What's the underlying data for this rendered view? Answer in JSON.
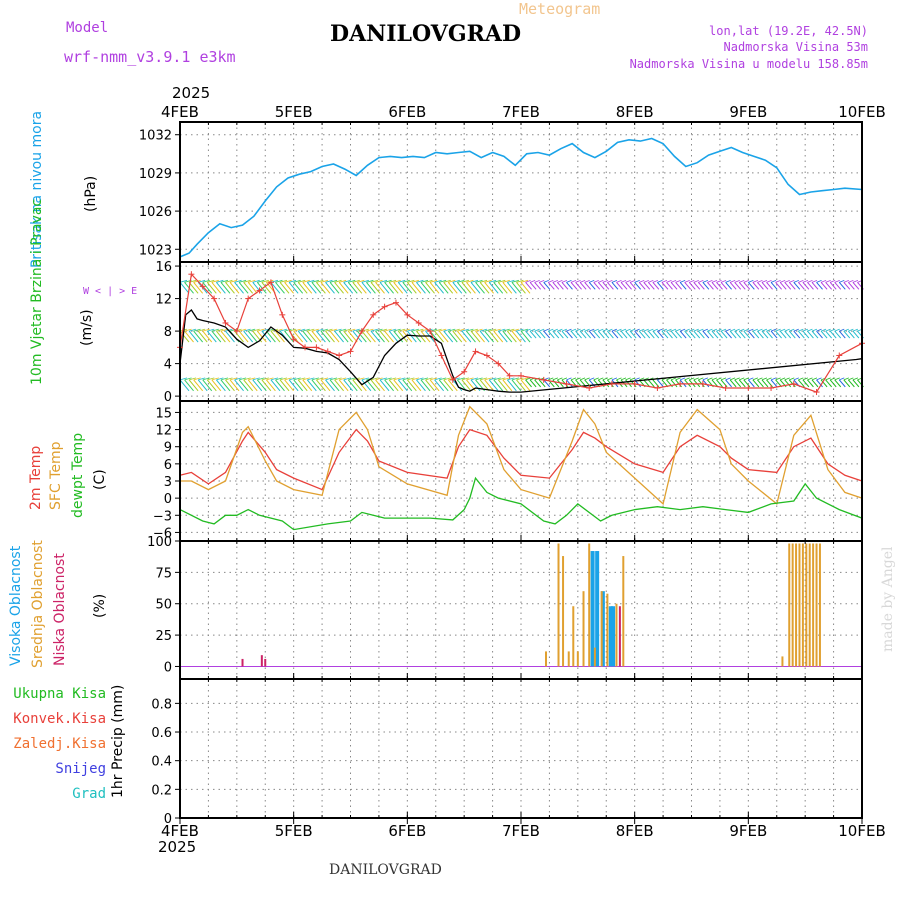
{
  "header": {
    "title": "DANILOVGRAD",
    "subtitle": "Meteogram",
    "model_label": "Model",
    "model_name": "wrf-nmm_v3.9.1  e3km",
    "coords": "lon,lat (19.2E, 42.5N)",
    "elevation": "Nadmorska Visina 53m",
    "model_elevation": "Nadmorska Visina u modelu 158.85m",
    "year_top": "2025",
    "year_bottom": "2025",
    "footer_title": "DANILOVGRAD",
    "credit": "made by Angel"
  },
  "colors": {
    "pressure": "#1aa3e8",
    "temp2m": "#e8403a",
    "sfc": "#e0a030",
    "dew": "#22bb22",
    "wind_line": "#000000",
    "gust": "#e8403a",
    "purple": "#b040e0",
    "grid": "#888888"
  },
  "chart_data": [
    {
      "type": "line",
      "title": "Pritisak na nivou mora",
      "ylabel": "(hPa)",
      "y_ticks": [
        1023,
        1026,
        1029,
        1032
      ],
      "ylim": [
        1022,
        1033
      ],
      "x_ticks": [
        "4FEB",
        "5FEB",
        "6FEB",
        "7FEB",
        "8FEB",
        "9FEB",
        "10FEB"
      ],
      "xlim": [
        0,
        6
      ],
      "series": [
        {
          "name": "pressure",
          "x": [
            0,
            0.08,
            0.15,
            0.25,
            0.35,
            0.45,
            0.55,
            0.65,
            0.75,
            0.85,
            0.95,
            1.05,
            1.15,
            1.25,
            1.35,
            1.45,
            1.55,
            1.65,
            1.75,
            1.85,
            1.95,
            2.05,
            2.15,
            2.25,
            2.35,
            2.45,
            2.55,
            2.65,
            2.75,
            2.85,
            2.95,
            3.05,
            3.15,
            3.25,
            3.35,
            3.45,
            3.55,
            3.65,
            3.75,
            3.85,
            3.95,
            4.05,
            4.15,
            4.25,
            4.35,
            4.45,
            4.55,
            4.65,
            4.75,
            4.85,
            4.95,
            5.05,
            5.15,
            5.25,
            5.35,
            5.45,
            5.55,
            5.65,
            5.75,
            5.85,
            6.0
          ],
          "values": [
            1022.4,
            1022.7,
            1023.4,
            1024.3,
            1025.0,
            1024.7,
            1024.9,
            1025.6,
            1026.8,
            1027.9,
            1028.6,
            1028.9,
            1029.1,
            1029.5,
            1029.7,
            1029.3,
            1028.8,
            1029.6,
            1030.2,
            1030.3,
            1030.2,
            1030.3,
            1030.2,
            1030.6,
            1030.5,
            1030.6,
            1030.7,
            1030.2,
            1030.6,
            1030.3,
            1029.6,
            1030.5,
            1030.6,
            1030.4,
            1030.9,
            1031.3,
            1030.6,
            1030.2,
            1030.7,
            1031.4,
            1031.6,
            1031.5,
            1031.7,
            1031.3,
            1030.3,
            1029.5,
            1029.8,
            1030.4,
            1030.7,
            1031.0,
            1030.6,
            1030.3,
            1030.0,
            1029.4,
            1028.1,
            1027.3,
            1027.5,
            1027.6,
            1027.7,
            1027.8,
            1027.7
          ]
        }
      ]
    },
    {
      "type": "line",
      "title": "10m Vjetar Brzina i Pravac",
      "ylabel": "(m/s)",
      "direction_legend": "W < | > E",
      "y_ticks": [
        0,
        4,
        8,
        12,
        16
      ],
      "ylim": [
        -0.6,
        16.5
      ],
      "series": [
        {
          "name": "wind speed",
          "x": [
            0,
            0.05,
            0.1,
            0.15,
            0.2,
            0.3,
            0.4,
            0.5,
            0.6,
            0.7,
            0.8,
            0.9,
            1.0,
            1.1,
            1.2,
            1.3,
            1.4,
            1.5,
            1.6,
            1.7,
            1.8,
            1.9,
            2.0,
            2.1,
            2.2,
            2.3,
            2.4,
            2.45,
            2.5,
            2.55,
            2.6,
            2.7,
            2.8,
            2.9,
            3.0,
            5.95,
            6.0
          ],
          "values": [
            4,
            10,
            10.6,
            9.5,
            9.3,
            9.0,
            8.5,
            7.0,
            6.0,
            6.8,
            8.5,
            7.5,
            6.0,
            5.9,
            5.5,
            5.3,
            4.5,
            3.0,
            1.4,
            2.3,
            5.0,
            6.5,
            7.5,
            7.4,
            7.4,
            6.5,
            2.5,
            1.1,
            0.8,
            0.6,
            1.0,
            0.8,
            0.6,
            0.5,
            0.5,
            4.5,
            4.6
          ]
        },
        {
          "name": "gusts",
          "x": [
            0,
            0.1,
            0.2,
            0.3,
            0.4,
            0.5,
            0.6,
            0.7,
            0.8,
            0.9,
            1.0,
            1.1,
            1.2,
            1.3,
            1.4,
            1.5,
            1.6,
            1.7,
            1.8,
            1.9,
            2.0,
            2.1,
            2.2,
            2.3,
            2.4,
            2.5,
            2.6,
            2.7,
            2.8,
            2.9,
            3.0,
            3.2,
            3.4,
            3.6,
            3.8,
            4.0,
            4.2,
            4.4,
            4.6,
            4.8,
            5.0,
            5.2,
            5.4,
            5.6,
            5.8,
            6.0
          ],
          "values": [
            6,
            15,
            13.5,
            12,
            9,
            8,
            12,
            13,
            14,
            10,
            7,
            6,
            6,
            5.5,
            5,
            5.5,
            8,
            10,
            11,
            11.5,
            10,
            9,
            8,
            5,
            2,
            3,
            5.5,
            5,
            4,
            2.5,
            2.5,
            2,
            1.5,
            1,
            1.5,
            1.5,
            1,
            1.5,
            1.5,
            1,
            1,
            1,
            1.5,
            0.5,
            5,
            6.5
          ]
        }
      ],
      "barb_rows": [
        {
          "color": "#b040e0",
          "level": 14,
          "label": "upper level"
        },
        {
          "color": "#22bbcc",
          "level": 8,
          "label": "mid level"
        },
        {
          "color": "#22bb22",
          "level": 2,
          "label": "low level"
        }
      ]
    },
    {
      "type": "line",
      "title": "2m Temp / SFC Temp / dewpt Temp",
      "ylabel": "(C)",
      "labels": [
        "2m Temp",
        "SFC Temp",
        "dewpt Temp"
      ],
      "y_ticks": [
        -6,
        -3,
        0,
        3,
        6,
        9,
        12,
        15
      ],
      "ylim": [
        -7.5,
        17
      ],
      "series": [
        {
          "name": "2m Temp",
          "x": [
            0,
            0.1,
            0.25,
            0.4,
            0.55,
            0.6,
            0.75,
            0.85,
            1.0,
            1.25,
            1.4,
            1.55,
            1.65,
            1.75,
            2.0,
            2.35,
            2.45,
            2.55,
            2.7,
            2.85,
            3.0,
            3.25,
            3.45,
            3.55,
            3.65,
            3.75,
            4.0,
            4.25,
            4.4,
            4.55,
            4.75,
            4.85,
            5.0,
            5.25,
            5.4,
            5.55,
            5.7,
            5.85,
            6.0
          ],
          "values": [
            4,
            4.5,
            2.5,
            4.5,
            10,
            11.5,
            8,
            5,
            3.5,
            1.5,
            8,
            12,
            10,
            6.5,
            4.5,
            3.5,
            9,
            12,
            11,
            7,
            4,
            3.5,
            8.5,
            11.5,
            10.5,
            9,
            6,
            4.5,
            9,
            11,
            9,
            7,
            5,
            4.5,
            9,
            10.5,
            6,
            4,
            3
          ]
        },
        {
          "name": "SFC Temp",
          "x": [
            0,
            0.1,
            0.25,
            0.4,
            0.55,
            0.6,
            0.75,
            0.85,
            1.0,
            1.25,
            1.4,
            1.55,
            1.65,
            1.75,
            2.0,
            2.35,
            2.45,
            2.55,
            2.7,
            2.85,
            3.0,
            3.25,
            3.45,
            3.55,
            3.65,
            3.75,
            4.0,
            4.25,
            4.4,
            4.55,
            4.75,
            4.85,
            5.0,
            5.25,
            5.4,
            5.55,
            5.7,
            5.85,
            6.0
          ],
          "values": [
            3,
            3,
            1.5,
            3,
            11.5,
            12.5,
            6.5,
            3,
            1.5,
            0.5,
            12,
            15,
            12,
            5.5,
            2.5,
            0.5,
            11,
            16,
            13,
            5,
            1.5,
            0,
            10,
            15.5,
            13,
            8,
            3.5,
            -1,
            11.5,
            15.5,
            12,
            6,
            3,
            -1,
            11,
            14.5,
            5,
            1,
            0
          ]
        },
        {
          "name": "dewpt Temp",
          "x": [
            0,
            0.2,
            0.3,
            0.4,
            0.5,
            0.6,
            0.7,
            0.9,
            1.0,
            1.3,
            1.5,
            1.6,
            1.8,
            2.0,
            2.2,
            2.4,
            2.5,
            2.55,
            2.6,
            2.7,
            2.8,
            3.0,
            3.2,
            3.3,
            3.4,
            3.5,
            3.7,
            3.8,
            4.0,
            4.2,
            4.4,
            4.6,
            4.8,
            5.0,
            5.2,
            5.4,
            5.5,
            5.6,
            5.8,
            6.0
          ],
          "values": [
            -2,
            -4,
            -4.5,
            -3,
            -3,
            -2,
            -3,
            -4,
            -5.5,
            -4.5,
            -4,
            -2.5,
            -3.5,
            -3.5,
            -3.5,
            -3.8,
            -2,
            0,
            3.5,
            1,
            0,
            -1,
            -4,
            -4.5,
            -3,
            -1,
            -4,
            -3,
            -2,
            -1.5,
            -2,
            -1.5,
            -2,
            -2.5,
            -1,
            -0.5,
            2.5,
            0,
            -2,
            -3.5
          ]
        }
      ]
    },
    {
      "type": "bar",
      "title": "Visoka / Srednja / Niska Oblacnost",
      "ylabel": "(%)",
      "labels": [
        "Visoka Oblacnost",
        "Srednja Oblacnost",
        "Niska Oblacnost"
      ],
      "y_ticks": [
        0,
        25,
        50,
        75,
        100
      ],
      "ylim": [
        -10,
        100
      ],
      "series": [
        {
          "name": "Visoka",
          "color": "#1aa3e8",
          "x": [
            3.63,
            3.67,
            3.72,
            3.79,
            3.81
          ],
          "values": [
            92,
            92,
            60,
            48,
            48
          ]
        },
        {
          "name": "Srednja",
          "color": "#e0a030",
          "x": [
            3.22,
            3.33,
            3.37,
            3.42,
            3.46,
            3.5,
            3.55,
            3.6,
            3.65,
            3.71,
            3.76,
            3.84,
            3.9,
            5.3,
            5.36,
            5.39,
            5.42,
            5.45,
            5.48,
            5.51,
            5.54,
            5.57,
            5.6,
            5.63
          ],
          "values": [
            12,
            98,
            88,
            12,
            48,
            12,
            60,
            98,
            15,
            60,
            58,
            50,
            88,
            8,
            98,
            98,
            98,
            98,
            98,
            98,
            98,
            98,
            98,
            98
          ]
        },
        {
          "name": "Niska",
          "color": "#cc2266",
          "x": [
            0.55,
            0.72,
            0.75,
            3.87
          ],
          "values": [
            6,
            9,
            6,
            48
          ]
        }
      ]
    },
    {
      "type": "bar",
      "title": "1hr Precip",
      "ylabel": "1hr Precip (mm)",
      "labels": [
        "Ukupna Kisa",
        "Konvek.Kisa",
        "Zaledj.Kisa",
        "Snijeg",
        "Grad"
      ],
      "y_ticks": [
        0,
        0.2,
        0.4,
        0.6,
        0.8
      ],
      "y_tick_labels": [
        "0",
        "0.2",
        "0.4",
        "0.6",
        "0.8"
      ],
      "ylim": [
        0,
        0.97
      ],
      "series": []
    }
  ]
}
